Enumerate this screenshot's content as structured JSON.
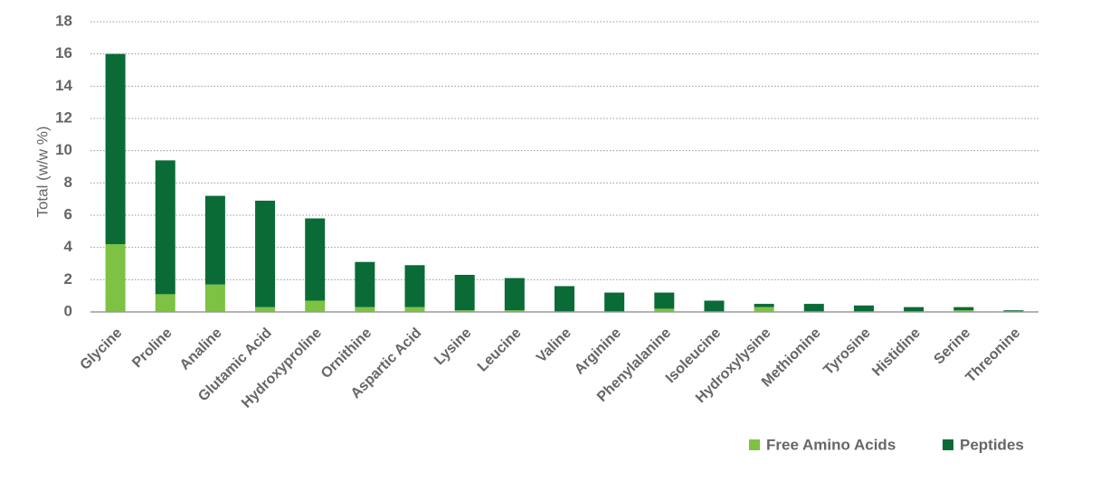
{
  "chart_data": {
    "type": "stacked_bar",
    "y_label": "Total (w/w %)",
    "categories": [
      "Glycine",
      "Proline",
      "Analine",
      "Glutamic Acid",
      "Hydroxyproline",
      "Ornithine",
      "Aspartic Acid",
      "Lysine",
      "Leucine",
      "Valine",
      "Arginine",
      "Phenylalanine",
      "Isoleucine",
      "Hydroxylysine",
      "Methionine",
      "Tyrosine",
      "Histidine",
      "Serine",
      "Threonine"
    ],
    "series": [
      {
        "name": "Free Amino Acids",
        "color": "#7dc242",
        "values": [
          4.2,
          1.1,
          1.7,
          0.3,
          0.7,
          0.3,
          0.3,
          0.1,
          0.1,
          0,
          0,
          0.2,
          0,
          0.3,
          0,
          0,
          0,
          0.1,
          0
        ]
      },
      {
        "name": "Peptides",
        "color": "#0a6b36",
        "values": [
          11.8,
          8.3,
          5.5,
          6.6,
          5.1,
          2.8,
          2.6,
          2.2,
          2.0,
          1.6,
          1.2,
          1.0,
          0.7,
          0.2,
          0.5,
          0.4,
          0.3,
          0.2,
          0.1
        ]
      }
    ],
    "ylim": [
      0,
      18
    ],
    "yticks": [
      0,
      2,
      4,
      6,
      8,
      10,
      12,
      14,
      16,
      18
    ],
    "grid": true,
    "legend": "bottom-right"
  }
}
